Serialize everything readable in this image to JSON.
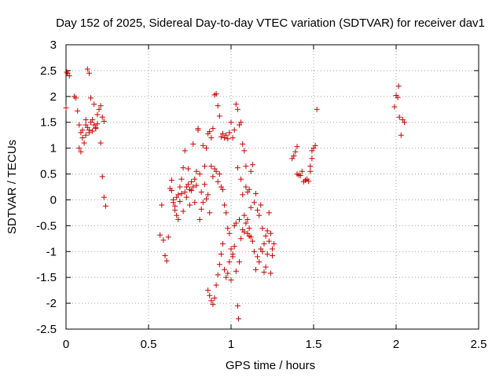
{
  "chart_data": {
    "type": "scatter",
    "title": "Day 152 of 2025, Sidereal Day-to-day VTEC variation (SDTVAR) for receiver dav1",
    "xlabel": "GPS time / hours",
    "ylabel": "SDTVAR / TECUs",
    "xlim": [
      0,
      2.5
    ],
    "ylim": [
      -2.5,
      3
    ],
    "xticks": [
      0,
      0.5,
      1,
      1.5,
      2,
      2.5
    ],
    "xtick_labels": [
      "0",
      "0.5",
      "1",
      "1.5",
      "2",
      "2.5"
    ],
    "yticks": [
      -2.5,
      -2,
      -1.5,
      -1,
      -0.5,
      0,
      0.5,
      1,
      1.5,
      2,
      2.5,
      3
    ],
    "ytick_labels": [
      "-2.5",
      "-2",
      "-1.5",
      "-1",
      "-0.5",
      "0",
      "0.5",
      "1",
      "1.5",
      "2",
      "2.5",
      "3"
    ],
    "grid": true,
    "marker": "+",
    "color": "#cc0000",
    "series": [
      {
        "name": "SDTVAR",
        "points": [
          [
            0.005,
            2.47
          ],
          [
            0.01,
            2.45
          ],
          [
            0.02,
            2.4
          ],
          [
            0.0,
            1.78
          ],
          [
            0.05,
            2.0
          ],
          [
            0.06,
            1.97
          ],
          [
            0.13,
            2.53
          ],
          [
            0.14,
            2.45
          ],
          [
            0.15,
            1.97
          ],
          [
            0.07,
            1.72
          ],
          [
            0.08,
            1.45
          ],
          [
            0.09,
            1.3
          ],
          [
            0.1,
            1.2
          ],
          [
            0.11,
            1.1
          ],
          [
            0.08,
            1.0
          ],
          [
            0.09,
            0.93
          ],
          [
            0.12,
            1.45
          ],
          [
            0.13,
            1.4
          ],
          [
            0.14,
            1.35
          ],
          [
            0.15,
            1.5
          ],
          [
            0.16,
            1.55
          ],
          [
            0.17,
            1.45
          ],
          [
            0.18,
            1.4
          ],
          [
            0.19,
            1.65
          ],
          [
            0.2,
            1.75
          ],
          [
            0.21,
            1.82
          ],
          [
            0.22,
            1.6
          ],
          [
            0.23,
            1.52
          ],
          [
            0.12,
            1.25
          ],
          [
            0.14,
            1.3
          ],
          [
            0.16,
            1.33
          ],
          [
            0.18,
            1.38
          ],
          [
            0.19,
            1.47
          ],
          [
            0.21,
            1.1
          ],
          [
            0.22,
            0.45
          ],
          [
            0.23,
            0.05
          ],
          [
            0.24,
            -0.12
          ],
          [
            0.1,
            1.35
          ],
          [
            0.12,
            1.55
          ],
          [
            0.17,
            1.85
          ],
          [
            0.57,
            -0.68
          ],
          [
            0.58,
            -0.1
          ],
          [
            0.59,
            -0.78
          ],
          [
            0.6,
            -1.08
          ],
          [
            0.61,
            -1.18
          ],
          [
            0.62,
            -0.72
          ],
          [
            0.63,
            0.22
          ],
          [
            0.64,
            0.38
          ],
          [
            0.64,
            0.18
          ],
          [
            0.65,
            -0.05
          ],
          [
            0.65,
            0.0
          ],
          [
            0.66,
            -0.12
          ],
          [
            0.66,
            -0.2
          ],
          [
            0.67,
            0.05
          ],
          [
            0.67,
            -0.3
          ],
          [
            0.68,
            -0.38
          ],
          [
            0.68,
            0.1
          ],
          [
            0.69,
            -0.03
          ],
          [
            0.69,
            0.25
          ],
          [
            0.7,
            0.4
          ],
          [
            0.7,
            0.12
          ],
          [
            0.71,
            -0.22
          ],
          [
            0.71,
            0.62
          ],
          [
            0.72,
            0.95
          ],
          [
            0.72,
            0.15
          ],
          [
            0.73,
            0.05
          ],
          [
            0.73,
            0.25
          ],
          [
            0.74,
            0.6
          ],
          [
            0.74,
            0.3
          ],
          [
            0.75,
            0.2
          ],
          [
            0.75,
            -0.1
          ],
          [
            0.76,
            0.35
          ],
          [
            0.76,
            0.18
          ],
          [
            0.77,
            0.25
          ],
          [
            0.77,
            1.08
          ],
          [
            0.78,
            0.4
          ],
          [
            0.78,
            -0.05
          ],
          [
            0.79,
            0.55
          ],
          [
            0.79,
            0.28
          ],
          [
            0.8,
            1.38
          ],
          [
            0.8,
            1.35
          ],
          [
            0.81,
            0.5
          ],
          [
            0.81,
            -0.38
          ],
          [
            0.82,
            0.15
          ],
          [
            0.82,
            -0.18
          ],
          [
            0.83,
            1.05
          ],
          [
            0.83,
            -0.05
          ],
          [
            0.84,
            0.65
          ],
          [
            0.84,
            0.3
          ],
          [
            0.85,
            1.0
          ],
          [
            0.85,
            0.02
          ],
          [
            0.86,
            1.28
          ],
          [
            0.86,
            0.1
          ],
          [
            0.87,
            1.32
          ],
          [
            0.87,
            -0.25
          ],
          [
            0.88,
            1.2
          ],
          [
            0.88,
            0.65
          ],
          [
            0.89,
            1.38
          ],
          [
            0.89,
            0.45
          ],
          [
            0.9,
            2.03
          ],
          [
            0.9,
            0.6
          ],
          [
            0.91,
            2.05
          ],
          [
            0.91,
            0.55
          ],
          [
            0.92,
            1.82
          ],
          [
            0.92,
            0.35
          ],
          [
            0.93,
            1.62
          ],
          [
            0.93,
            0.5
          ],
          [
            0.94,
            1.22
          ],
          [
            0.94,
            0.25
          ],
          [
            0.95,
            1.28
          ],
          [
            0.95,
            0.2
          ],
          [
            0.96,
            1.2
          ],
          [
            0.96,
            -0.1
          ],
          [
            0.97,
            1.25
          ],
          [
            0.97,
            -0.25
          ],
          [
            0.98,
            1.18
          ],
          [
            0.98,
            -0.55
          ],
          [
            0.99,
            1.3
          ],
          [
            0.99,
            -0.65
          ],
          [
            1.0,
            1.5
          ],
          [
            1.0,
            -0.95
          ],
          [
            1.01,
            1.2
          ],
          [
            1.01,
            -1.05
          ],
          [
            1.02,
            1.35
          ],
          [
            1.02,
            -0.5
          ],
          [
            1.03,
            1.85
          ],
          [
            1.03,
            -0.45
          ],
          [
            1.04,
            1.75
          ],
          [
            1.04,
            0.62
          ],
          [
            1.05,
            1.45
          ],
          [
            1.05,
            -0.38
          ],
          [
            1.06,
            1.5
          ],
          [
            1.06,
            0.4
          ],
          [
            1.07,
            1.08
          ],
          [
            1.07,
            0.1
          ],
          [
            1.08,
            0.95
          ],
          [
            1.08,
            -0.3
          ],
          [
            1.09,
            0.65
          ],
          [
            1.09,
            0.25
          ],
          [
            1.1,
            0.15
          ],
          [
            1.1,
            -0.65
          ],
          [
            1.11,
            0.2
          ],
          [
            1.11,
            -0.7
          ],
          [
            1.12,
            0.55
          ],
          [
            1.12,
            -0.15
          ],
          [
            1.13,
            0.68
          ],
          [
            1.13,
            -0.8
          ],
          [
            1.14,
            -0.05
          ],
          [
            1.14,
            -1.0
          ],
          [
            1.15,
            0.12
          ],
          [
            1.15,
            -1.35
          ],
          [
            1.16,
            -0.2
          ],
          [
            1.16,
            -1.1
          ],
          [
            1.17,
            -0.3
          ],
          [
            1.17,
            -1.2
          ],
          [
            1.18,
            -0.1
          ],
          [
            1.18,
            -0.95
          ],
          [
            1.19,
            -0.55
          ],
          [
            1.19,
            -1.0
          ],
          [
            1.2,
            -0.85
          ],
          [
            1.2,
            -1.4
          ],
          [
            1.21,
            -0.7
          ],
          [
            1.21,
            -1.3
          ],
          [
            1.22,
            -0.6
          ],
          [
            1.22,
            -1.05
          ],
          [
            1.23,
            -0.25
          ],
          [
            1.23,
            -0.8
          ],
          [
            1.24,
            -0.65
          ],
          [
            1.24,
            -1.42
          ],
          [
            1.25,
            -0.95
          ],
          [
            1.25,
            -1.08
          ],
          [
            1.26,
            -0.85
          ],
          [
            0.86,
            -1.75
          ],
          [
            0.87,
            -1.85
          ],
          [
            0.88,
            -1.95
          ],
          [
            0.89,
            -2.02
          ],
          [
            0.9,
            -1.9
          ],
          [
            0.91,
            -1.65
          ],
          [
            0.92,
            -1.45
          ],
          [
            0.93,
            -1.25
          ],
          [
            0.94,
            -1.05
          ],
          [
            0.95,
            -0.85
          ],
          [
            0.96,
            -1.35
          ],
          [
            0.97,
            -1.5
          ],
          [
            0.98,
            -1.42
          ],
          [
            0.99,
            -1.2
          ],
          [
            1.0,
            -1.55
          ],
          [
            1.01,
            -1.1
          ],
          [
            1.02,
            -0.9
          ],
          [
            1.03,
            -1.38
          ],
          [
            1.04,
            -2.05
          ],
          [
            1.045,
            -2.3
          ],
          [
            1.05,
            -1.2
          ],
          [
            1.06,
            -0.75
          ],
          [
            1.07,
            -0.58
          ],
          [
            1.08,
            -0.62
          ],
          [
            1.09,
            -0.45
          ],
          [
            1.1,
            -0.38
          ],
          [
            1.11,
            -0.55
          ],
          [
            1.12,
            -0.72
          ],
          [
            1.37,
            0.8
          ],
          [
            1.38,
            0.85
          ],
          [
            1.39,
            0.93
          ],
          [
            1.4,
            1.03
          ],
          [
            1.4,
            0.5
          ],
          [
            1.41,
            0.48
          ],
          [
            1.42,
            0.47
          ],
          [
            1.43,
            0.55
          ],
          [
            1.44,
            0.35
          ],
          [
            1.45,
            0.38
          ],
          [
            1.46,
            0.4
          ],
          [
            1.47,
            0.36
          ],
          [
            1.48,
            0.55
          ],
          [
            1.48,
            0.65
          ],
          [
            1.49,
            0.8
          ],
          [
            1.49,
            0.95
          ],
          [
            1.5,
            1.0
          ],
          [
            1.51,
            1.05
          ],
          [
            1.52,
            1.75
          ],
          [
            1.99,
            1.8
          ],
          [
            2.0,
            2.02
          ],
          [
            2.01,
            1.98
          ],
          [
            2.015,
            2.2
          ],
          [
            2.02,
            1.6
          ],
          [
            2.03,
            1.25
          ],
          [
            2.04,
            1.55
          ],
          [
            2.05,
            1.5
          ]
        ]
      }
    ]
  }
}
